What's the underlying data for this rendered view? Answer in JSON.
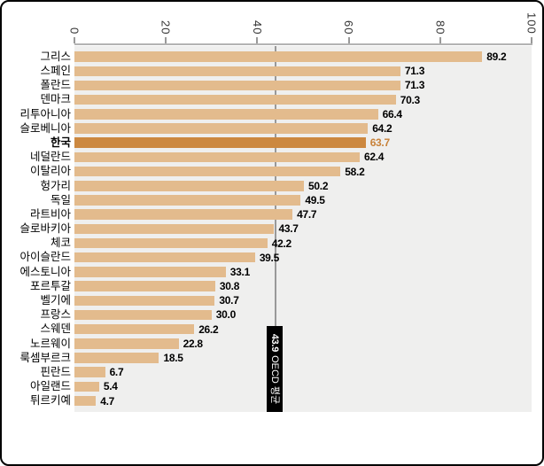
{
  "chart_data": {
    "type": "bar",
    "orientation": "horizontal",
    "categories": [
      "그리스",
      "스페인",
      "폴란드",
      "덴마크",
      "리투아니아",
      "슬로베니아",
      "한국",
      "네덜란드",
      "이탈리아",
      "헝가리",
      "독일",
      "라트비아",
      "슬로바키아",
      "체코",
      "아이슬란드",
      "에스토니아",
      "포르투갈",
      "벨기에",
      "프랑스",
      "스웨덴",
      "노르웨이",
      "룩셈부르크",
      "핀란드",
      "아일랜드",
      "튀르키예"
    ],
    "values": [
      89.2,
      71.3,
      71.3,
      70.3,
      66.4,
      64.2,
      63.7,
      62.4,
      58.2,
      50.2,
      49.5,
      47.7,
      43.7,
      42.2,
      39.5,
      33.1,
      30.8,
      30.7,
      30.0,
      26.2,
      22.8,
      18.5,
      6.7,
      5.4,
      4.7
    ],
    "highlight_index": 6,
    "highlight_category": "한국",
    "x_ticks": [
      0,
      20,
      40,
      60,
      80,
      100
    ],
    "xlim": [
      0,
      100
    ],
    "grid": false,
    "legend": null,
    "title": "",
    "average_marker": {
      "value": 43.9,
      "value_label": "43.9",
      "caption": "OECD 평균"
    }
  },
  "colors": {
    "bar": "#e3bb8d",
    "highlight_bar": "#cc8840",
    "highlight_value_text": "#c8823a",
    "plot_background": "#efefee",
    "page_background": "#ffffff",
    "border": "#000000",
    "axis_line": "#b3b3b3",
    "tick": "#999999",
    "tick_text": "#333333",
    "average_line": "#999999",
    "average_badge_background": "#000000",
    "average_badge_text": "#ffffff",
    "text": "#000000"
  }
}
